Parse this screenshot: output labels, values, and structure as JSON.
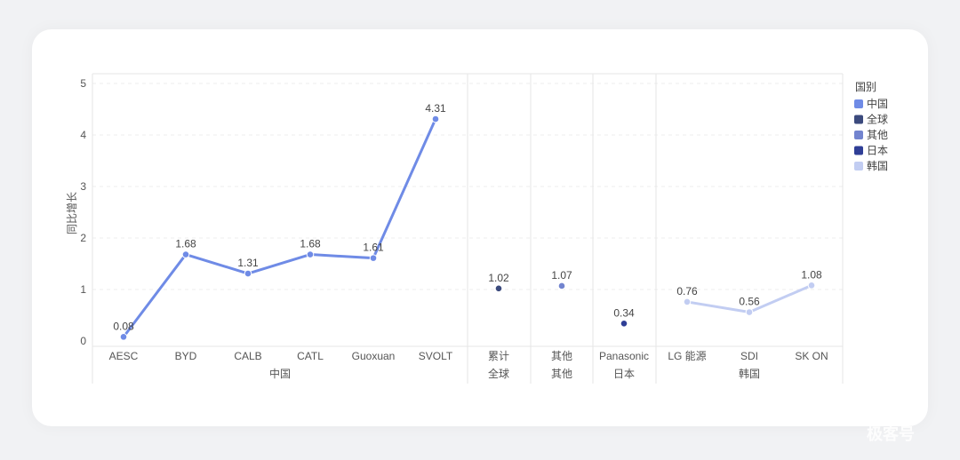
{
  "chart_data": {
    "type": "line",
    "ylabel": "同比增长",
    "ylim": [
      0,
      5
    ],
    "yticks": [
      0,
      1,
      2,
      3,
      4,
      5
    ],
    "grid": true,
    "legend_placement": "top-right",
    "legend": {
      "title": "国别",
      "items": [
        {
          "name": "中国",
          "color": "#6f8be6"
        },
        {
          "name": "全球",
          "color": "#3b4a7d"
        },
        {
          "name": "其他",
          "color": "#7284cf"
        },
        {
          "name": "日本",
          "color": "#2f3e96"
        },
        {
          "name": "韩国",
          "color": "#c2cdf2"
        }
      ]
    },
    "groups": [
      {
        "name": "中国",
        "color": "#6f8be6",
        "categories": [
          "AESC",
          "BYD",
          "CALB",
          "CATL",
          "Guoxuan",
          "SVOLT"
        ],
        "values": [
          0.08,
          1.68,
          1.31,
          1.68,
          1.61,
          4.31
        ],
        "labels": [
          "0.08",
          "1.68",
          "1.31",
          "1.68",
          "1.61",
          "4.31"
        ]
      },
      {
        "name": "全球",
        "color": "#3b4a7d",
        "categories": [
          "累计"
        ],
        "values": [
          1.02
        ],
        "labels": [
          "1.02"
        ]
      },
      {
        "name": "其他",
        "color": "#7284cf",
        "categories": [
          "其他"
        ],
        "values": [
          1.07
        ],
        "labels": [
          "1.07"
        ]
      },
      {
        "name": "日本",
        "color": "#2f3e96",
        "categories": [
          "Panasonic"
        ],
        "values": [
          0.34
        ],
        "labels": [
          "0.34"
        ]
      },
      {
        "name": "韩国",
        "color": "#c2cdf2",
        "categories": [
          "LG 能源",
          "SDI",
          "SK ON"
        ],
        "values": [
          0.76,
          0.56,
          1.08
        ],
        "labels": [
          "0.76",
          "0.56",
          "1.08"
        ]
      }
    ]
  },
  "watermark": "极客号"
}
